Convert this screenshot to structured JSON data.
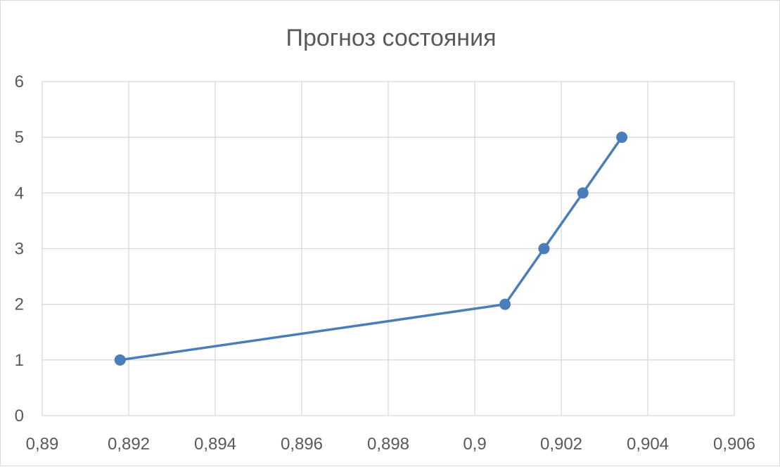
{
  "chart_data": {
    "type": "scatter",
    "title": "Прогноз состояния",
    "xlabel": "",
    "ylabel": "",
    "xlim": [
      0.89,
      0.906
    ],
    "ylim": [
      0,
      6
    ],
    "x_ticks": [
      0.89,
      0.892,
      0.894,
      0.896,
      0.898,
      0.9,
      0.902,
      0.904,
      0.906
    ],
    "x_tick_labels": [
      "0,89",
      "0,892",
      "0,894",
      "0,896",
      "0,898",
      "0,9",
      "0,902",
      "0,904",
      "0,906"
    ],
    "y_ticks": [
      0,
      1,
      2,
      3,
      4,
      5,
      6
    ],
    "y_tick_labels": [
      "0",
      "1",
      "2",
      "3",
      "4",
      "5",
      "6"
    ],
    "grid": true,
    "legend": "none",
    "series": [
      {
        "color": "#4a7ebb",
        "marker": "circle",
        "line": "straight",
        "points": [
          {
            "x": 0.8918,
            "y": 1
          },
          {
            "x": 0.9007,
            "y": 2
          },
          {
            "x": 0.9016,
            "y": 3
          },
          {
            "x": 0.9025,
            "y": 4
          },
          {
            "x": 0.9034,
            "y": 5
          }
        ]
      }
    ]
  }
}
